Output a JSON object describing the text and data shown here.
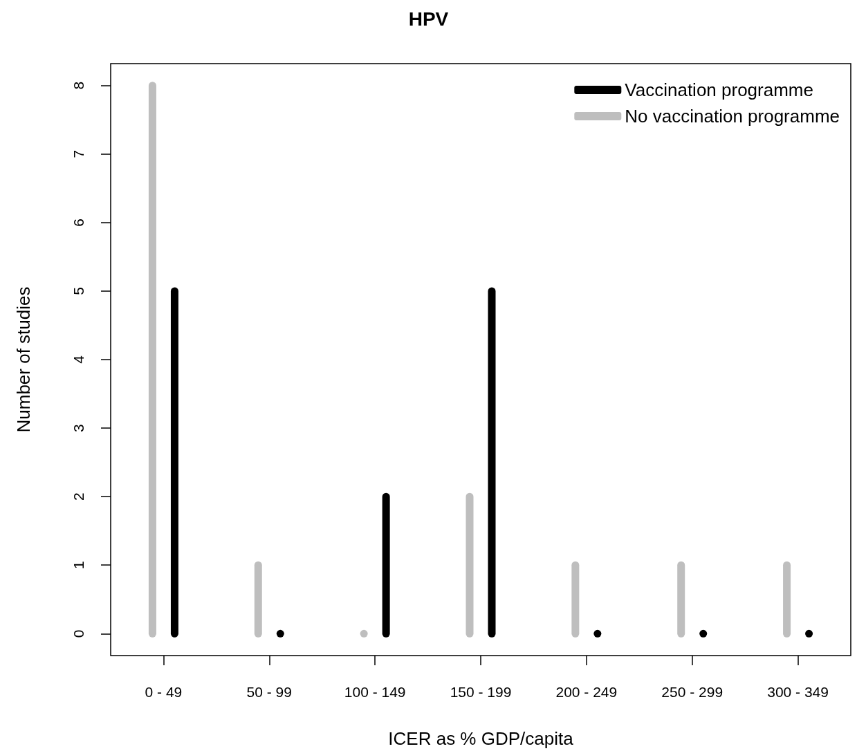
{
  "chart_data": {
    "type": "bar",
    "title": "HPV",
    "xlabel": "ICER as % GDP/capita",
    "ylabel": "Number of studies",
    "categories": [
      "0 - 49",
      "50 - 99",
      "100 - 149",
      "150 - 199",
      "200 - 249",
      "250 - 299",
      "300 - 349"
    ],
    "series": [
      {
        "name": "Vaccination programme",
        "color": "#000000",
        "values": [
          5,
          0,
          2,
          5,
          0,
          0,
          0
        ]
      },
      {
        "name": "No vaccination programme",
        "color": "#bebebe",
        "values": [
          8,
          1,
          0,
          2,
          1,
          1,
          1
        ]
      }
    ],
    "ylim": [
      -0.32,
      8.32
    ],
    "yticks": [
      0,
      1,
      2,
      3,
      4,
      5,
      6,
      7,
      8
    ],
    "grid": false,
    "legend": "top right"
  }
}
